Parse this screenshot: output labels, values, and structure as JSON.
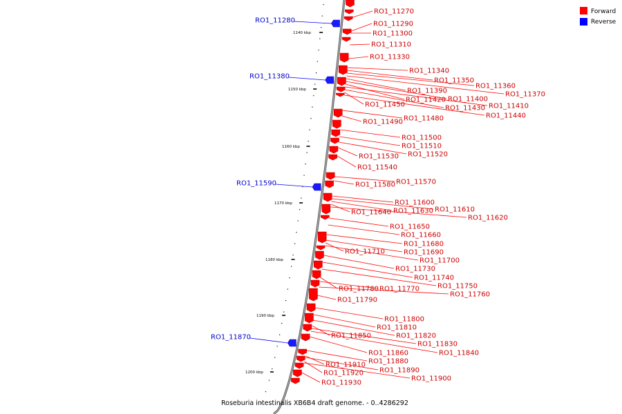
{
  "legend": [
    {
      "label": "Forward",
      "color": "#ff0000"
    },
    {
      "label": "Reverse",
      "color": "#0000ff"
    }
  ],
  "caption": "Roseburia intestinalis XB6B4 draft genome. - 0..4286292",
  "ticks": [
    "1140 kbp",
    "1150 kbp",
    "1160 kbp",
    "1170 kbp",
    "1180 kbp",
    "1190 kbp",
    "1200 kbp"
  ],
  "reverse_genes": [
    "RO1_11280",
    "RO1_11380",
    "RO1_11590",
    "RO1_11870"
  ],
  "forward_genes": [
    "RO1_11270",
    "RO1_11290",
    "RO1_11300",
    "RO1_11310",
    "RO1_11330",
    "RO1_11340",
    "RO1_11350",
    "RO1_11360",
    "RO1_11370",
    "RO1_11390",
    "RO1_11400",
    "RO1_11420",
    "RO1_11410",
    "RO1_11430",
    "RO1_11450",
    "RO1_11440",
    "RO1_11480",
    "RO1_11490",
    "RO1_11500",
    "RO1_11510",
    "RO1_11520",
    "RO1_11530",
    "RO1_11540",
    "RO1_11570",
    "RO1_11580",
    "RO1_11600",
    "RO1_11610",
    "RO1_11630",
    "RO1_11640",
    "RO1_11620",
    "RO1_11650",
    "RO1_11660",
    "RO1_11680",
    "RO1_11690",
    "RO1_11710",
    "RO1_11700",
    "RO1_11730",
    "RO1_11740",
    "RO1_11750",
    "RO1_11780",
    "RO1_11770",
    "RO1_11760",
    "RO1_11790",
    "RO1_11800",
    "RO1_11810",
    "RO1_11820",
    "RO1_11850",
    "RO1_11830",
    "RO1_11840",
    "RO1_11860",
    "RO1_11880",
    "RO1_11910",
    "RO1_11890",
    "RO1_11920",
    "RO1_11900",
    "RO1_11930"
  ]
}
